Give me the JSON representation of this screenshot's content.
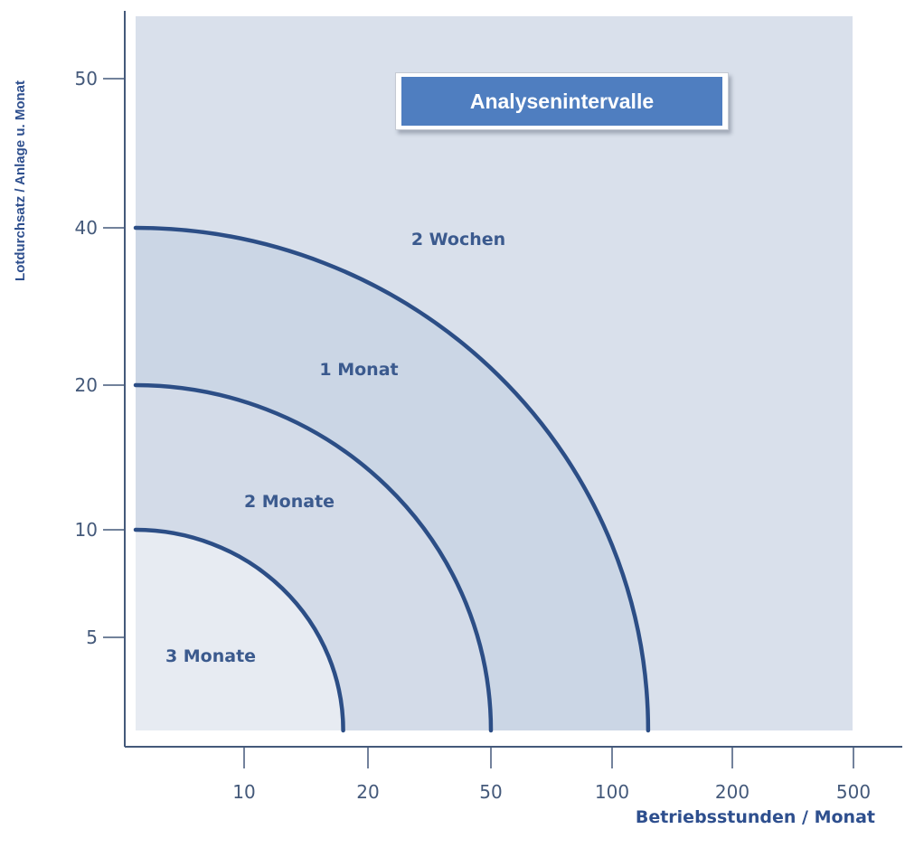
{
  "chart_data": {
    "type": "area",
    "title": "Analysenintervalle",
    "xlabel": "Betriebsstunden / Monat",
    "ylabel": "Lotdurchsatz / Anlage u. Monat",
    "x_ticks": [
      "10",
      "20",
      "50",
      "100",
      "200",
      "500"
    ],
    "y_ticks": [
      "5",
      "10",
      "20",
      "40",
      "50"
    ],
    "regions": [
      {
        "name": "3 Monate",
        "x_max": 18,
        "y_max": 10,
        "color": "#e7ebf2"
      },
      {
        "name": "2 Monate",
        "x_max": 50,
        "y_max": 20,
        "color": "#d3dbe8"
      },
      {
        "name": "1 Monat",
        "x_max": 130,
        "y_max": 40,
        "color": "#cbd6e5"
      },
      {
        "name": "2 Wochen",
        "x_max": 500,
        "y_max": 55,
        "color": "#d9e0eb"
      }
    ],
    "boundary_color": "#2c4e86",
    "accent": "#4f7ec0"
  }
}
